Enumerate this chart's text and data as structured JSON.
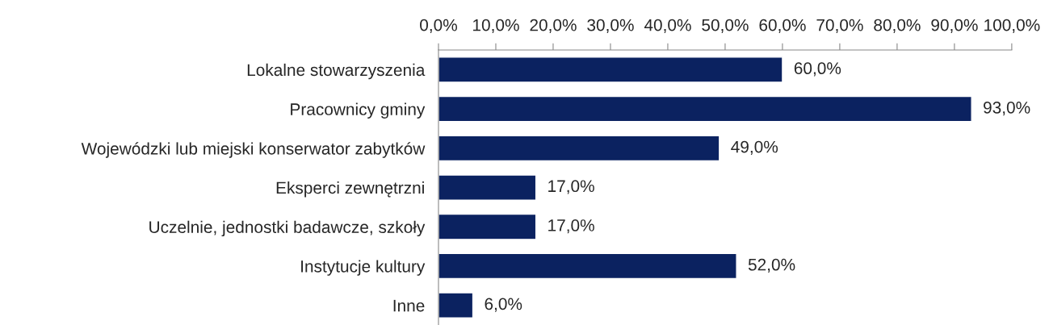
{
  "chart_data": {
    "type": "bar",
    "orientation": "horizontal",
    "categories": [
      "Lokalne stowarzyszenia",
      "Pracownicy gminy",
      "Wojewódzki lub miejski konserwator zabytków",
      "Eksperci zewnętrzni",
      "Uczelnie, jednostki badawcze, szkoły",
      "Instytucje kultury",
      "Inne"
    ],
    "values": [
      60,
      93,
      49,
      17,
      17,
      52,
      6
    ],
    "value_labels": [
      "60,0%",
      "93,0%",
      "49,0%",
      "17,0%",
      "17,0%",
      "52,0%",
      "6,0%"
    ],
    "color": "#0b2260",
    "xlim": [
      0,
      100
    ],
    "xticks": [
      {
        "value": 0,
        "label": "0,0%"
      },
      {
        "value": 10,
        "label": "10,0%"
      },
      {
        "value": 20,
        "label": "20,0%"
      },
      {
        "value": 30,
        "label": "30,0%"
      },
      {
        "value": 40,
        "label": "40,0%"
      },
      {
        "value": 50,
        "label": "50,0%"
      },
      {
        "value": 60,
        "label": "60,0%"
      },
      {
        "value": 70,
        "label": "70,0%"
      },
      {
        "value": 80,
        "label": "80,0%"
      },
      {
        "value": 90,
        "label": "90,0%"
      },
      {
        "value": 100,
        "label": "100,0%"
      }
    ],
    "grid": false,
    "legend": false
  }
}
